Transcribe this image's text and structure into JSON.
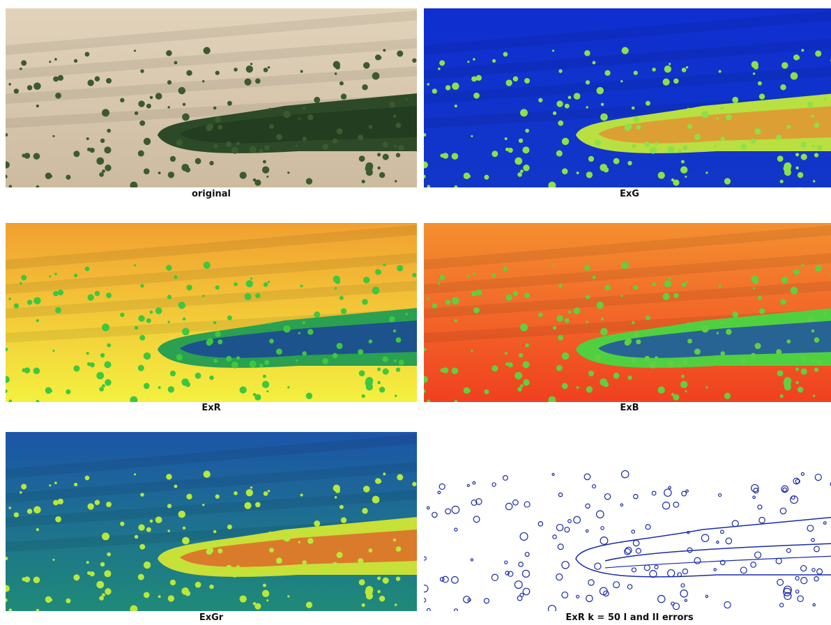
{
  "panels": [
    {
      "caption": "original"
    },
    {
      "caption": "ExG"
    },
    {
      "caption": "ExR"
    },
    {
      "caption": "ExB"
    },
    {
      "caption": "ExGr"
    },
    {
      "caption": "ExR k = 50 I and II errors"
    }
  ]
}
